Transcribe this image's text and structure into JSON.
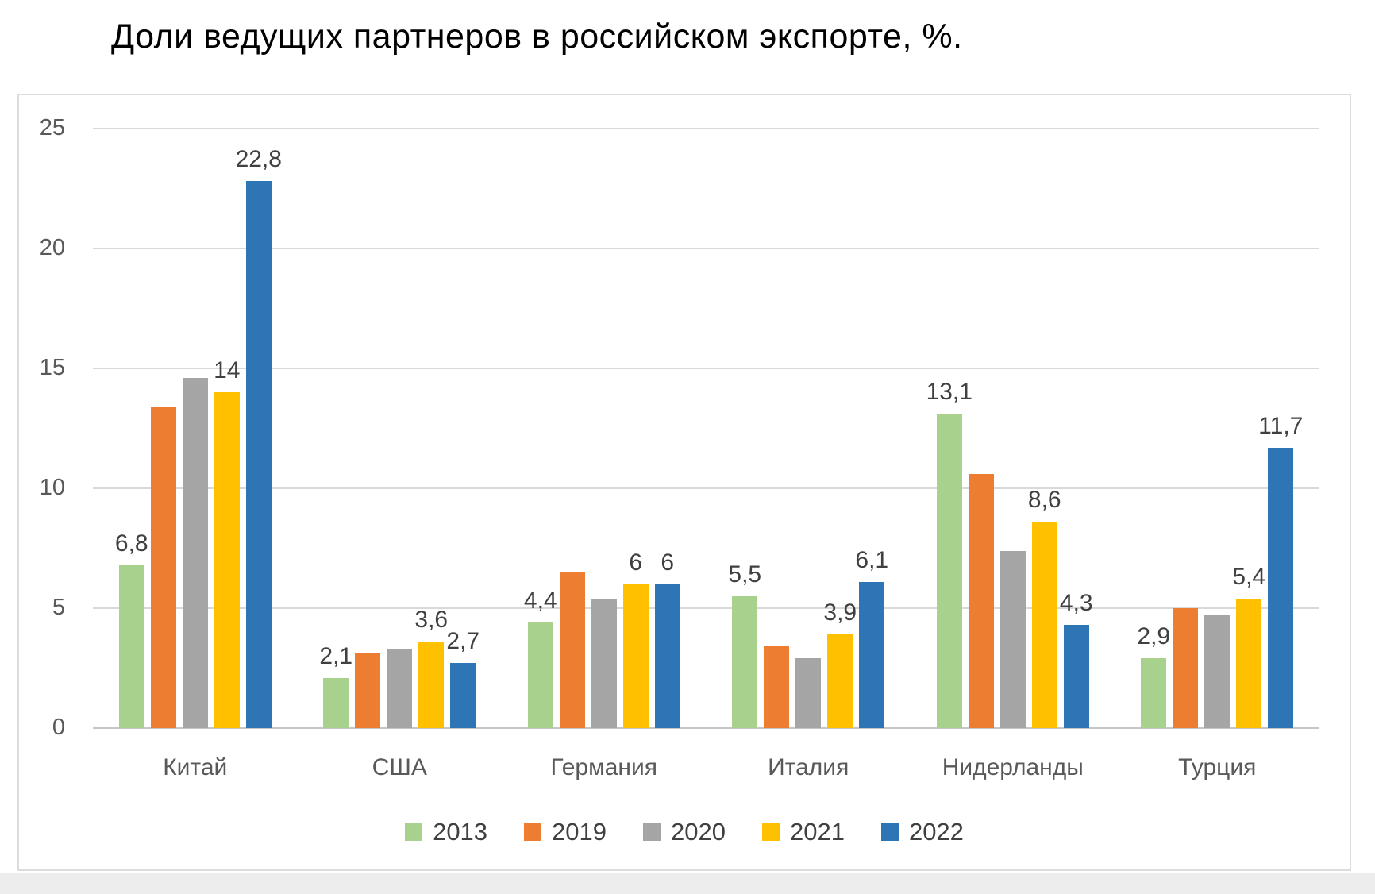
{
  "chart_data": {
    "type": "bar",
    "title": "Доли ведущих партнеров в российском экспорте, %.",
    "categories": [
      "Китай",
      "США",
      "Германия",
      "Италия",
      "Нидерланды",
      "Турция"
    ],
    "series": [
      {
        "name": "2013",
        "color": "#a9d18e",
        "values": [
          6.8,
          2.1,
          4.4,
          5.5,
          13.1,
          2.9
        ],
        "data_labels": [
          "6,8",
          "2,1",
          "4,4",
          "5,5",
          "13,1",
          "2,9"
        ]
      },
      {
        "name": "2019",
        "color": "#ed7d31",
        "values": [
          13.4,
          3.1,
          6.5,
          3.4,
          10.6,
          5.0
        ],
        "data_labels": null
      },
      {
        "name": "2020",
        "color": "#a5a5a5",
        "values": [
          14.6,
          3.3,
          5.4,
          2.9,
          7.4,
          4.7
        ],
        "data_labels": null
      },
      {
        "name": "2021",
        "color": "#ffc000",
        "values": [
          14,
          3.6,
          6,
          3.9,
          8.6,
          5.4
        ],
        "data_labels": [
          "14",
          "3,6",
          "6",
          "3,9",
          "8,6",
          "5,4"
        ]
      },
      {
        "name": "2022",
        "color": "#2e75b6",
        "values": [
          22.8,
          2.7,
          6,
          6.1,
          4.3,
          11.7
        ],
        "data_labels": [
          "22,8",
          "2,7",
          "6",
          "6,1",
          "4,3",
          "11,7"
        ]
      }
    ],
    "xlabel": "",
    "ylabel": "",
    "ylim": [
      0,
      25
    ],
    "yticks": [
      0,
      5,
      10,
      15,
      20,
      25
    ],
    "grid": "horizontal",
    "legend_position": "bottom"
  }
}
